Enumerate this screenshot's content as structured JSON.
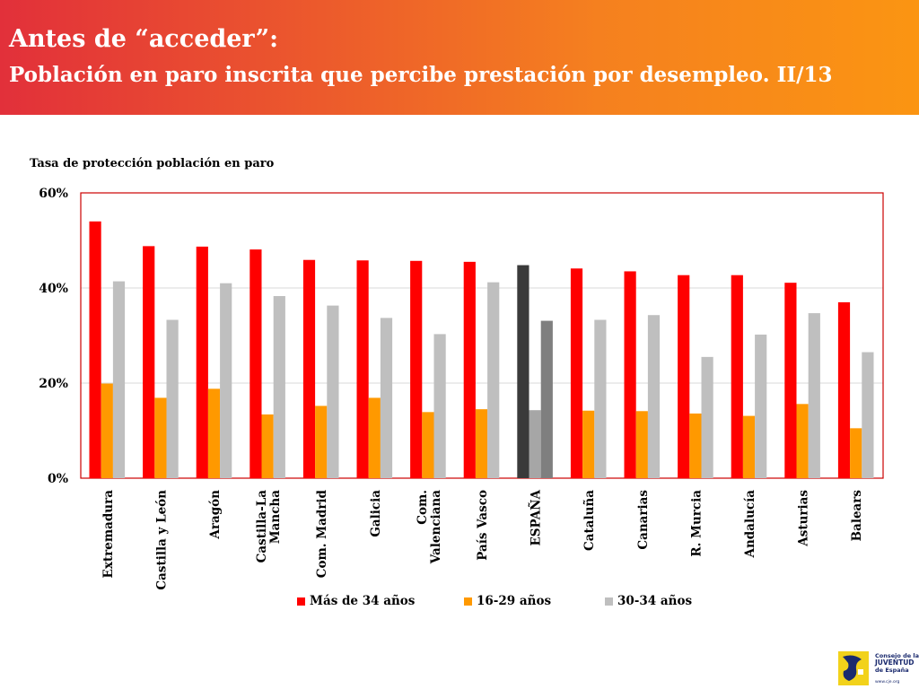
{
  "header": {
    "title": "Antes de “acceder”:",
    "subtitle": "Población en paro inscrita que percibe prestación por desempleo. II/13"
  },
  "colors": {
    "header_gradient": [
      "#e2303a",
      "#fb9512"
    ],
    "series_over34": "#ff0000",
    "series_16_29": "#ff9900",
    "series_30_34": "#bfbfbf",
    "espana_over34": "#3a3a3a",
    "espana_16_29": "#a6a6a6",
    "espana_30_34": "#7f7f7f",
    "plot_border": "#cc0000"
  },
  "chart_data": {
    "type": "bar",
    "title": "Tasa de protección población en paro",
    "xlabel": "",
    "ylabel": "",
    "ylim": [
      0,
      60
    ],
    "yticks": [
      "0%",
      "20%",
      "40%",
      "60%"
    ],
    "grid": true,
    "legend_position": "bottom",
    "categories": [
      "Extremadura",
      "Castilla y León",
      "Aragón",
      "Castilla-La Mancha",
      "Com. Madrid",
      "Galicia",
      "Com. Valenciana",
      "País Vasco",
      "ESPAÑA",
      "Cataluña",
      "Canarias",
      "R. Murcia",
      "Andalucía",
      "Asturias",
      "Balears"
    ],
    "category_lines": [
      [
        "Extremadura"
      ],
      [
        "Castilla y León"
      ],
      [
        "Aragón"
      ],
      [
        "Castilla-La",
        "Mancha"
      ],
      [
        "Com. Madrid"
      ],
      [
        "Galicia"
      ],
      [
        "Com.",
        "Valenciana"
      ],
      [
        "País Vasco"
      ],
      [
        "ESPAÑA"
      ],
      [
        "Cataluña"
      ],
      [
        "Canarias"
      ],
      [
        "R. Murcia"
      ],
      [
        "Andalucía"
      ],
      [
        "Asturias"
      ],
      [
        "Balears"
      ]
    ],
    "highlight_category": "ESPAÑA",
    "series": [
      {
        "name": "Más de 34 años",
        "values": [
          54.0,
          48.8,
          48.7,
          48.1,
          45.9,
          45.8,
          45.7,
          45.5,
          44.8,
          44.1,
          43.5,
          42.7,
          42.7,
          41.1,
          37.0
        ]
      },
      {
        "name": "16-29 años",
        "values": [
          19.9,
          16.9,
          18.8,
          13.4,
          15.2,
          16.9,
          13.9,
          14.5,
          14.3,
          14.2,
          14.1,
          13.6,
          13.1,
          15.6,
          10.5
        ]
      },
      {
        "name": "30-34 años",
        "values": [
          41.4,
          33.3,
          41.0,
          38.3,
          36.3,
          33.7,
          30.3,
          41.2,
          33.1,
          33.3,
          34.3,
          25.5,
          30.2,
          34.7,
          26.5
        ]
      }
    ]
  },
  "footer": {
    "logo_lines": [
      "Consejo de la",
      "JUVENTUD",
      "de España"
    ],
    "logo_url": "www.cje.org"
  }
}
